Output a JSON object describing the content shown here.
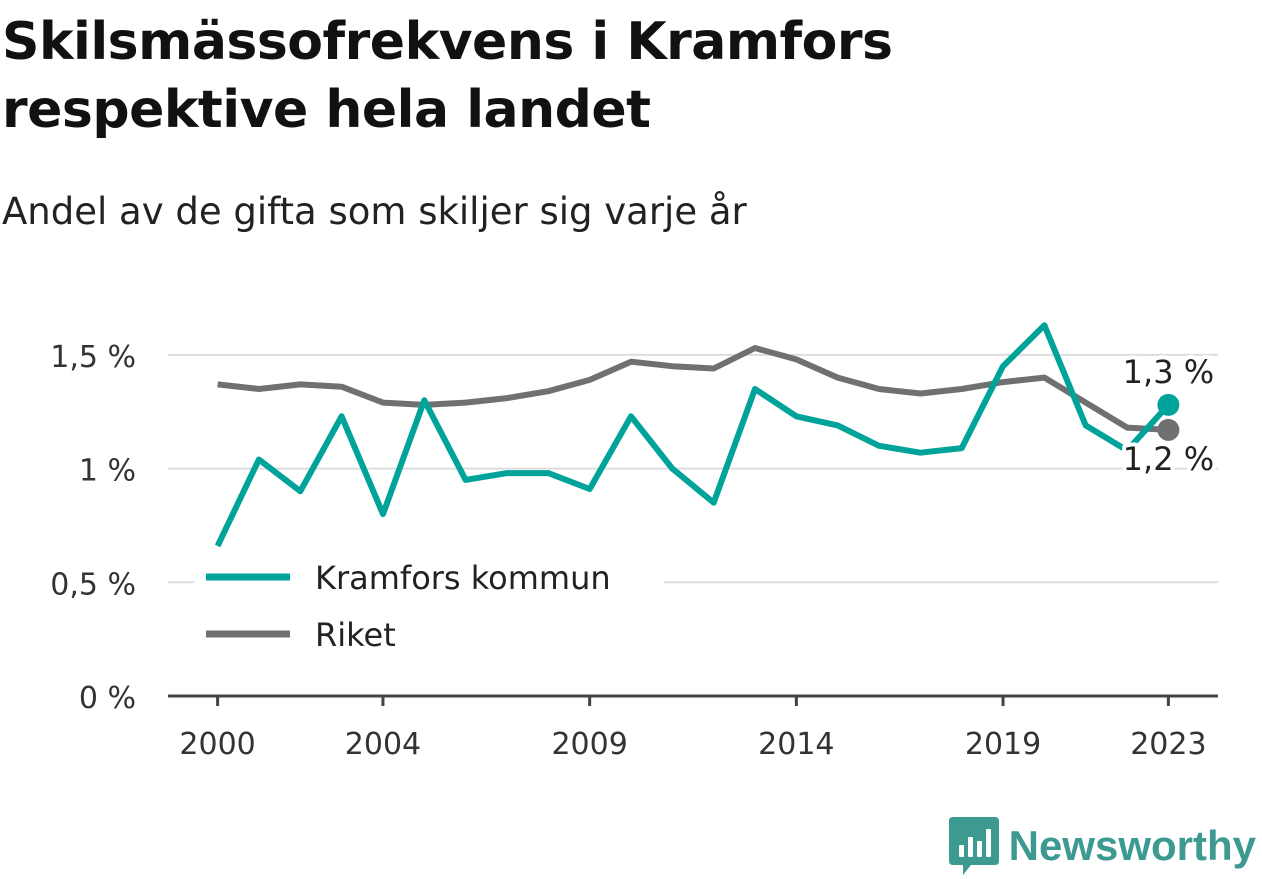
{
  "title": "Skilsmässofrekvens i Kramfors respektive hela landet",
  "subtitle": "Andel av de gifta som skiljer sig varje år",
  "brand": "Newsworthy",
  "colors": {
    "kramfors": "#00a39a",
    "riket": "#707073",
    "grid": "#dddddd",
    "axis": "#444444",
    "brand": "#3d9a91"
  },
  "chart_data": {
    "type": "line",
    "x": [
      2000,
      2001,
      2002,
      2003,
      2004,
      2005,
      2006,
      2007,
      2008,
      2009,
      2010,
      2011,
      2012,
      2013,
      2014,
      2015,
      2016,
      2017,
      2018,
      2019,
      2020,
      2021,
      2022,
      2023
    ],
    "x_ticks": [
      2000,
      2004,
      2009,
      2014,
      2019,
      2023
    ],
    "x_tick_labels": [
      "2000",
      "2004",
      "2009",
      "2014",
      "2019",
      "2023"
    ],
    "y_ticks": [
      0,
      0.5,
      1,
      1.5
    ],
    "y_tick_labels": [
      "0 %",
      "0,5 %",
      "1 %",
      "1,5 %"
    ],
    "ylim": [
      0,
      1.75
    ],
    "xlim": [
      1998.8,
      2024.2
    ],
    "grid": true,
    "legend_position": "bottom-left",
    "series": [
      {
        "name": "Kramfors kommun",
        "color_key": "kramfors",
        "values": [
          0.66,
          1.04,
          0.9,
          1.23,
          0.8,
          1.3,
          0.95,
          0.98,
          0.98,
          0.91,
          1.23,
          1.0,
          0.85,
          1.35,
          1.23,
          1.19,
          1.1,
          1.07,
          1.09,
          1.45,
          1.63,
          1.19,
          1.08,
          1.28
        ],
        "end_label": "1,3 %"
      },
      {
        "name": "Riket",
        "color_key": "riket",
        "values": [
          1.37,
          1.35,
          1.37,
          1.36,
          1.29,
          1.28,
          1.29,
          1.31,
          1.34,
          1.39,
          1.47,
          1.45,
          1.44,
          1.53,
          1.48,
          1.4,
          1.35,
          1.33,
          1.35,
          1.38,
          1.4,
          1.29,
          1.18,
          1.17
        ],
        "end_label": "1,2 %"
      }
    ]
  }
}
